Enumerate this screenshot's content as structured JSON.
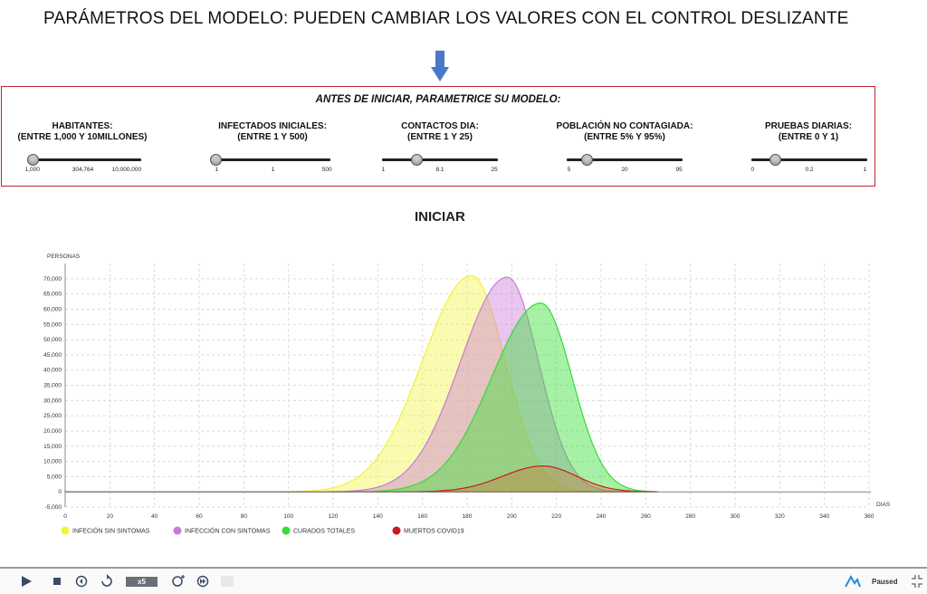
{
  "heading": "PARÁMETROS DEL MODELO: PUEDEN CAMBIAR LOS VALORES CON EL CONTROL DESLIZANTE",
  "panel": {
    "title": "ANTES DE INICIAR, PARAMETRICE SU MODELO:",
    "params": [
      {
        "line1": "HABITANTES:",
        "line2": "(ENTRE 1,000 Y 10MILLONES)",
        "ticks": [
          "1,000",
          "304,764",
          "10,000,000"
        ],
        "value_fraction": 0.03
      },
      {
        "line1": "INFECTADOS INICIALES:",
        "line2": "(ENTRE 1 Y 500)",
        "ticks": [
          "1",
          "1",
          "500"
        ],
        "value_fraction": 0.0
      },
      {
        "line1": "CONTACTOS DIA:",
        "line2": "(ENTRE 1 Y 25)",
        "ticks": [
          "1",
          "8.1",
          "25"
        ],
        "value_fraction": 0.3
      },
      {
        "line1": "POBLACIÓN NO CONTAGIADA:",
        "line2": "(ENTRE 5% Y 95%)",
        "ticks": [
          "5",
          "20",
          "95"
        ],
        "value_fraction": 0.17
      },
      {
        "line1": "PRUEBAS DIARIAS:",
        "line2": "(ENTRE 0 Y 1)",
        "ticks": [
          "0",
          "0.2",
          "1"
        ],
        "value_fraction": 0.2
      }
    ]
  },
  "start_button": "INICIAR",
  "chart_data": {
    "type": "area",
    "ylabel": "PERSONAS",
    "xlabel": "DIAS",
    "xlim": [
      0,
      360
    ],
    "ylim": [
      -5000,
      75000
    ],
    "x_ticks": [
      0,
      20,
      40,
      60,
      80,
      100,
      120,
      140,
      160,
      180,
      200,
      220,
      240,
      260,
      280,
      300,
      320,
      340,
      360
    ],
    "y_ticks": [
      "-5,000",
      "0",
      "5,000",
      "10,000",
      "15,000",
      "20,000",
      "25,000",
      "30,000",
      "35,000",
      "40,000",
      "45,000",
      "50,000",
      "55,000",
      "60,000",
      "65,000",
      "70,000"
    ],
    "y_tick_values": [
      -5000,
      0,
      5000,
      10000,
      15000,
      20000,
      25000,
      30000,
      35000,
      40000,
      45000,
      50000,
      55000,
      60000,
      65000,
      70000
    ],
    "grid": true,
    "legend_position": "bottom-left",
    "series": [
      {
        "name": "INFECIÓN SIN SINTOMAS",
        "color": "#f2f23a",
        "fill": "rgba(245,245,80,0.45)",
        "peak_x": 182,
        "peak_y": 71000,
        "left_width": 22,
        "right_width": 15,
        "x_start": 0,
        "x_end": 265
      },
      {
        "name": "INFECCIÓN CON SINTOMAS",
        "color": "#c87ad8",
        "fill": "rgba(200,120,215,0.42)",
        "peak_x": 198,
        "peak_y": 70500,
        "left_width": 21,
        "right_width": 14,
        "x_start": 0,
        "x_end": 265
      },
      {
        "name": "CURADOS TOTALES",
        "color": "#33dd33",
        "fill": "rgba(60,225,60,0.45)",
        "peak_x": 213,
        "peak_y": 62000,
        "left_width": 22,
        "right_width": 14,
        "x_start": 0,
        "x_end": 265
      },
      {
        "name": "MUERTOS COVID19",
        "color": "#cc1a1a",
        "fill": "rgba(205,110,40,0.35)",
        "peak_x": 214,
        "peak_y": 8500,
        "left_width": 18,
        "right_width": 15,
        "x_start": 0,
        "x_end": 265
      }
    ]
  },
  "player": {
    "speed_label": "x5",
    "status": "Paused",
    "icons": [
      "play-icon",
      "stop-icon",
      "step-back-icon",
      "reset-icon",
      "speed-badge",
      "add-speed-icon",
      "fast-forward-icon",
      "blank-icon"
    ]
  }
}
